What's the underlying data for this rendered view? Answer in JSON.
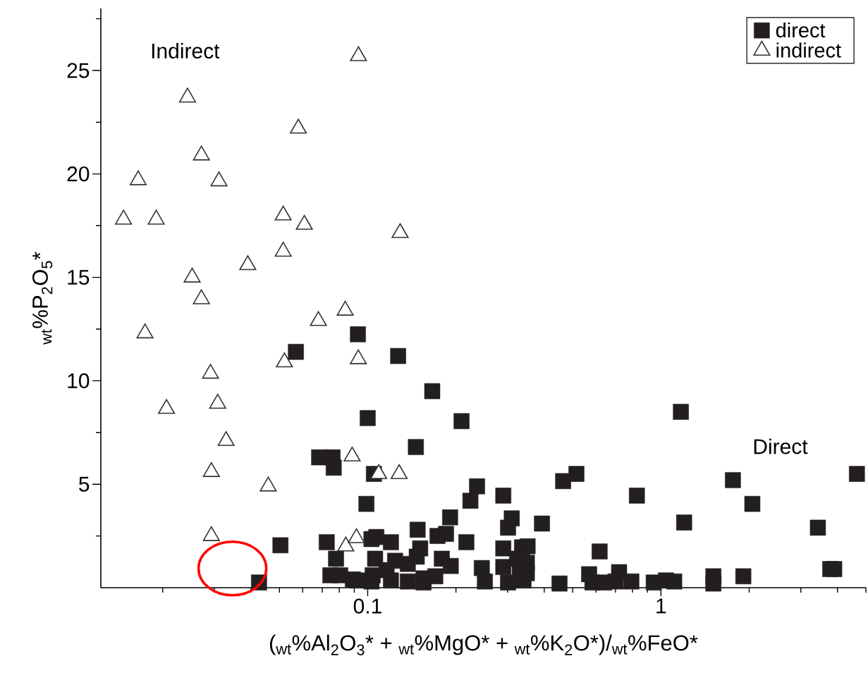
{
  "chart_data": {
    "type": "scatter",
    "xlabel": "($_{wt}$%Al$_{2}$O$_{3}$* + $_{wt}$%MgO* + $_{wt}$%K$_{2}$O*)/$_{wt}$%FeO*",
    "ylabel": "$_{wt}$%P$_{2}$O$_{5}$*",
    "annotations": [
      "Indirect",
      "Direct"
    ],
    "log": "x",
    "xlim": [
      0.0123,
      5
    ],
    "ylim": [
      0,
      28
    ],
    "xticks": [
      {
        "value": 0.02,
        "label": null
      },
      {
        "value": 0.03,
        "label": null
      },
      {
        "value": 0.04,
        "label": null
      },
      {
        "value": 0.05,
        "label": null
      },
      {
        "value": 0.06,
        "label": null
      },
      {
        "value": 0.07,
        "label": null
      },
      {
        "value": 0.08,
        "label": null
      },
      {
        "value": 0.09,
        "label": null
      },
      0.1,
      {
        "value": 0.2,
        "label": null
      },
      {
        "value": 0.3,
        "label": null
      },
      {
        "value": 0.4,
        "label": null
      },
      {
        "value": 0.5,
        "label": null
      },
      {
        "value": 0.6,
        "label": null
      },
      {
        "value": 0.7,
        "label": null
      },
      {
        "value": 0.8,
        "label": null
      },
      {
        "value": 0.9,
        "label": null
      },
      1,
      {
        "value": 2,
        "label": null
      },
      {
        "value": 3,
        "label": null
      },
      {
        "value": 4,
        "label": null
      },
      {
        "value": 5,
        "label": null
      }
    ],
    "yticks": [
      {
        "value": 2.5,
        "label": null
      },
      5,
      {
        "value": 7.5,
        "label": null
      },
      10,
      {
        "value": 12.5,
        "label": null
      },
      15,
      {
        "value": 17.5,
        "label": null
      },
      20,
      {
        "value": 22.5,
        "label": null
      },
      25,
      {
        "value": 27.5,
        "label": null
      }
    ],
    "legend": "top right",
    "series": [
      {
        "name": "direct",
        "color": "#231f20",
        "marker": "square",
        "x": [
          0.0926,
          0.127,
          0.0569,
          0.166,
          0.1,
          0.209,
          0.146,
          1.17,
          0.0683,
          0.0759,
          0.0766,
          0.105,
          0.099,
          0.236,
          0.224,
          0.29,
          0.31,
          0.301,
          0.191,
          0.393,
          0.464,
          0.515,
          0.148,
          0.173,
          0.185,
          0.0725,
          0.107,
          0.103,
          0.12,
          0.217,
          0.078,
          0.106,
          0.124,
          0.137,
          0.147,
          0.151,
          0.179,
          0.192,
          0.0746,
          0.0806,
          0.089,
          0.092,
          0.104,
          0.103,
          0.116,
          0.12,
          0.137,
          0.155,
          0.17,
          0.155,
          0.245,
          0.251,
          0.29,
          0.29,
          0.301,
          0.336,
          0.351,
          0.323,
          0.349,
          0.33,
          0.349,
          0.34,
          0.451,
          0.828,
          1.2,
          1.76,
          2.05,
          4.66,
          3.43,
          3.78,
          3.9,
          0.618,
          0.569,
          0.584,
          0.64,
          0.72,
          0.7,
          0.793,
          0.945,
          1.04,
          1.11,
          1.51,
          1.51,
          1.91,
          0.0504,
          0.0426
        ],
        "values": [
          12.25,
          11.2,
          11.4,
          9.5,
          8.2,
          8.05,
          6.8,
          8.5,
          6.3,
          6.3,
          5.8,
          5.5,
          4.05,
          4.9,
          4.2,
          4.45,
          3.35,
          2.9,
          3.4,
          3.1,
          5.15,
          5.5,
          2.8,
          2.5,
          2.6,
          2.2,
          2.45,
          2.35,
          2.2,
          2.2,
          1.4,
          1.4,
          1.3,
          1.15,
          1.5,
          1.9,
          1.4,
          1.05,
          0.6,
          0.6,
          0.4,
          0.35,
          0.6,
          0.3,
          0.85,
          0.35,
          0.3,
          0.45,
          0.55,
          0.25,
          0.95,
          0.3,
          1.9,
          1.0,
          0.25,
          1.95,
          2.0,
          1.4,
          1.2,
          0.7,
          0.7,
          0.35,
          0.2,
          4.45,
          3.15,
          5.2,
          4.05,
          5.5,
          2.9,
          0.9,
          0.9,
          1.75,
          0.65,
          0.25,
          0.25,
          0.75,
          0.3,
          0.3,
          0.25,
          0.35,
          0.3,
          0.55,
          0.2,
          0.55,
          2.05,
          0.25
        ]
      },
      {
        "name": "indirect",
        "color": "#333333",
        "marker": "triangle",
        "x": [
          0.093,
          0.0243,
          0.058,
          0.0271,
          0.0165,
          0.0311,
          0.0147,
          0.019,
          0.0515,
          0.0608,
          0.129,
          0.0515,
          0.039,
          0.0252,
          0.0271,
          0.0838,
          0.0679,
          0.0174,
          0.052,
          0.0929,
          0.0291,
          0.0308,
          0.0206,
          0.0329,
          0.0885,
          0.109,
          0.128,
          0.0293,
          0.0458,
          0.0293,
          0.0842,
          0.0915
        ],
        "values": [
          25.7,
          23.7,
          22.2,
          20.9,
          19.7,
          19.65,
          17.8,
          17.8,
          18.0,
          17.55,
          17.15,
          16.25,
          15.6,
          15.0,
          13.95,
          13.4,
          12.9,
          12.3,
          10.9,
          11.05,
          10.35,
          8.9,
          8.65,
          7.1,
          6.35,
          5.5,
          5.5,
          5.6,
          4.9,
          2.5,
          2.0,
          2.4
        ]
      }
    ]
  }
}
